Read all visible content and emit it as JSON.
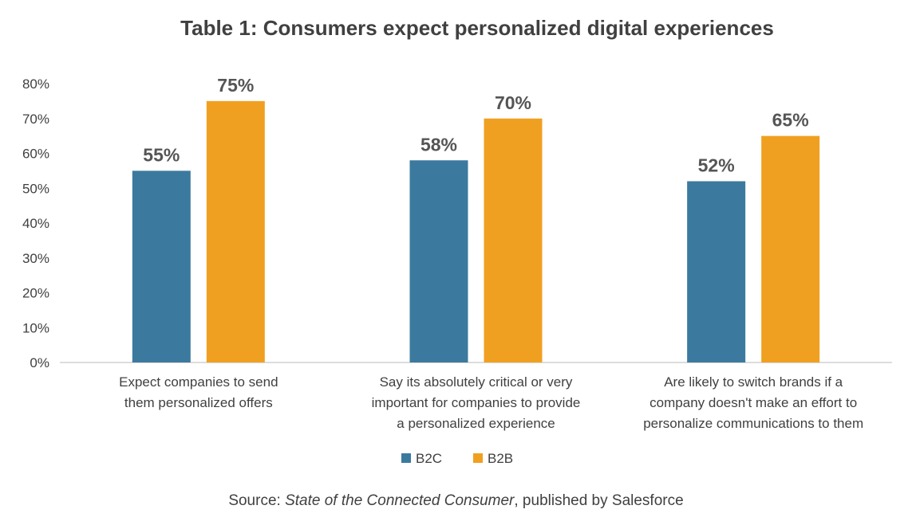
{
  "chart_data": {
    "type": "bar",
    "title": "Table 1: Consumers expect personalized digital experiences",
    "categories": [
      [
        "Expect companies to send",
        "them personalized offers"
      ],
      [
        "Say its absolutely critical or very",
        "important for companies to provide",
        "a personalized experience"
      ],
      [
        "Are likely to switch brands if a",
        "company doesn't make an effort to",
        "personalize communications to them"
      ]
    ],
    "series": [
      {
        "name": "B2C",
        "values": [
          55,
          58,
          52
        ],
        "labels": [
          "55%",
          "58%",
          "52%"
        ],
        "color": "#3B7A9E"
      },
      {
        "name": "B2B",
        "values": [
          75,
          70,
          65
        ],
        "labels": [
          "75%",
          "70%",
          "65%"
        ],
        "color": "#F0A020"
      }
    ],
    "yticks": [
      "0%",
      "10%",
      "20%",
      "30%",
      "40%",
      "50%",
      "60%",
      "70%",
      "80%"
    ],
    "ylim": [
      0,
      80
    ],
    "xlabel": "",
    "ylabel": "",
    "legend": "bottom-center",
    "grid": false
  },
  "source": {
    "prefix": "Source: ",
    "italic": "State of the Connected Consumer",
    "suffix": ", published by Salesforce"
  }
}
